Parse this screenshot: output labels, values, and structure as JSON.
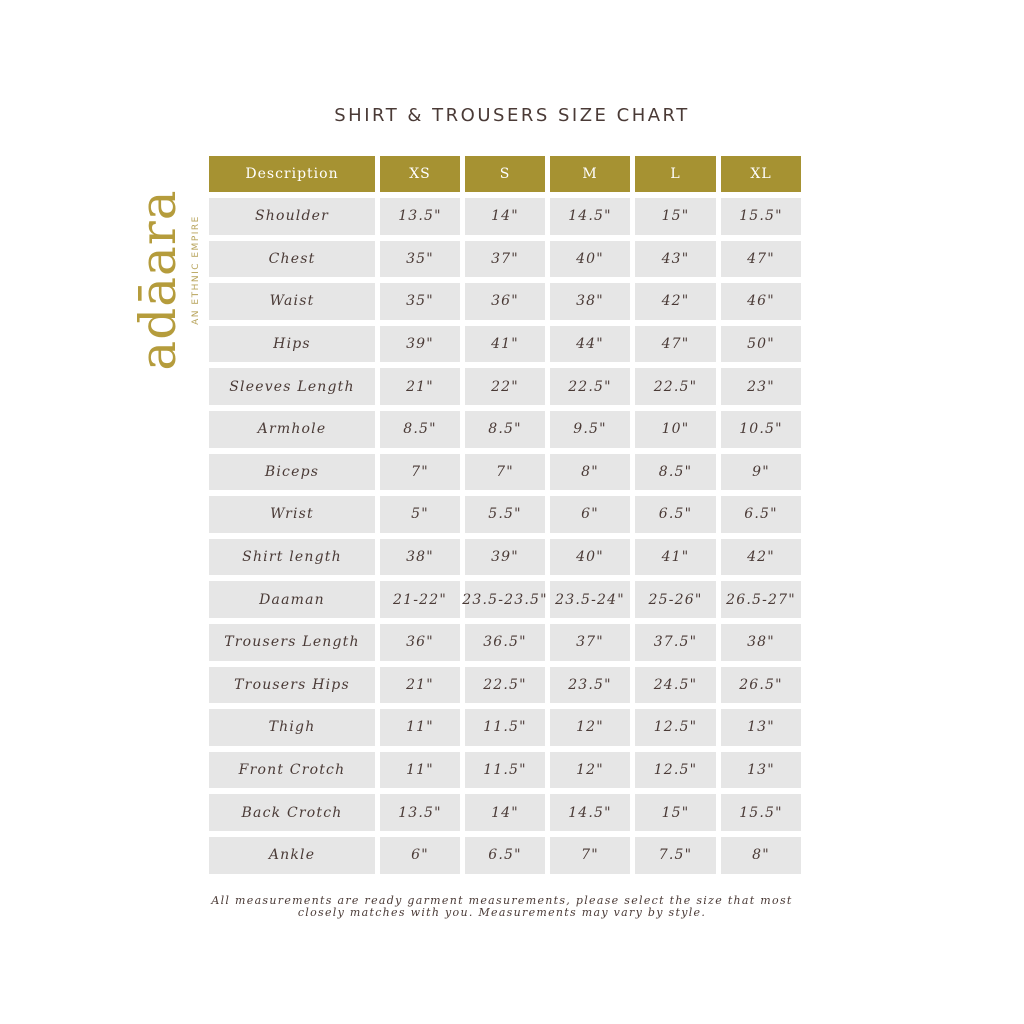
{
  "title": "SHIRT & TROUSERS SIZE CHART",
  "logo": {
    "word": "adāara",
    "tagline": "AN ETHNIC EMPIRE",
    "color": "#b59c3c"
  },
  "colors": {
    "header_bg": "#a69232",
    "cell_bg": "#e6e6e6",
    "text": "#4a3a36"
  },
  "table": {
    "headers": [
      "Description",
      "XS",
      "S",
      "M",
      "L",
      "XL"
    ],
    "rows": [
      [
        "Shoulder",
        "13.5\"",
        "14\"",
        "14.5\"",
        "15\"",
        "15.5\""
      ],
      [
        "Chest",
        "35\"",
        "37\"",
        "40\"",
        "43\"",
        "47\""
      ],
      [
        "Waist",
        "35\"",
        "36\"",
        "38\"",
        "42\"",
        "46\""
      ],
      [
        "Hips",
        "39\"",
        "41\"",
        "44\"",
        "47\"",
        "50\""
      ],
      [
        "Sleeves Length",
        "21\"",
        "22\"",
        "22.5\"",
        "22.5\"",
        "23\""
      ],
      [
        "Armhole",
        "8.5\"",
        "8.5\"",
        "9.5\"",
        "10\"",
        "10.5\""
      ],
      [
        "Biceps",
        "7\"",
        "7\"",
        "8\"",
        "8.5\"",
        "9\""
      ],
      [
        "Wrist",
        "5\"",
        "5.5\"",
        "6\"",
        "6.5\"",
        "6.5\""
      ],
      [
        "Shirt length",
        "38\"",
        "39\"",
        "40\"",
        "41\"",
        "42\""
      ],
      [
        "Daaman",
        "21-22\"",
        "23.5-23.5\"",
        "23.5-24\"",
        "25-26\"",
        "26.5-27\""
      ],
      [
        "Trousers Length",
        "36\"",
        "36.5\"",
        "37\"",
        "37.5\"",
        "38\""
      ],
      [
        "Trousers Hips",
        "21\"",
        "22.5\"",
        "23.5\"",
        "24.5\"",
        "26.5\""
      ],
      [
        "Thigh",
        "11\"",
        "11.5\"",
        "12\"",
        "12.5\"",
        "13\""
      ],
      [
        "Front Crotch",
        "11\"",
        "11.5\"",
        "12\"",
        "12.5\"",
        "13\""
      ],
      [
        "Back Crotch",
        "13.5\"",
        "14\"",
        "14.5\"",
        "15\"",
        "15.5\""
      ],
      [
        "Ankle",
        "6\"",
        "6.5\"",
        "7\"",
        "7.5\"",
        "8\""
      ]
    ]
  },
  "note": {
    "line1": "All measurements are ready garment measurements, please select the size that most",
    "line2": "closely matches with you. Measurements may vary by style."
  }
}
